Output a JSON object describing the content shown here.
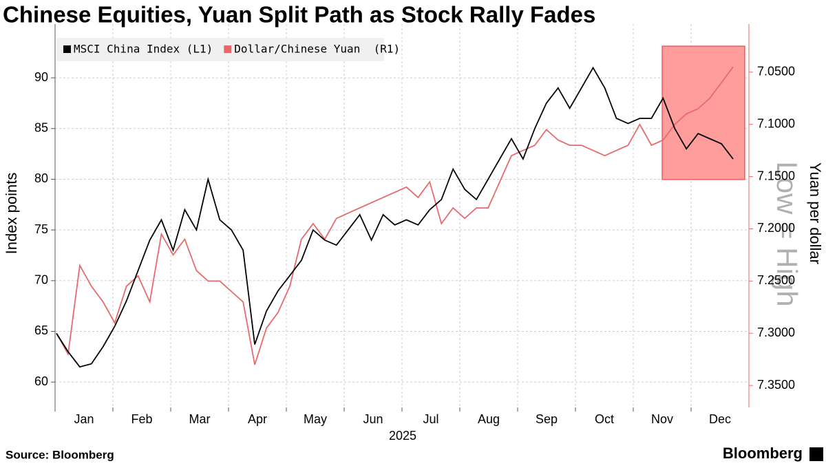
{
  "chart_data": {
    "type": "line",
    "title": "Chinese Equities, Yuan Split Path as Stock Rally Fades",
    "source": "Source: Bloomberg",
    "brand": "Bloomberg",
    "ylabel": "Index points",
    "y2label": "Yuan per dollar",
    "annotation": "Low = High",
    "xlabel": "2025",
    "months": [
      "Jan",
      "Feb",
      "Mar",
      "Apr",
      "May",
      "Jun",
      "Jul",
      "Aug",
      "Sep",
      "Oct",
      "Nov",
      "Dec"
    ],
    "ylim": [
      57.5,
      95.3
    ],
    "yticks": [
      60,
      65,
      70,
      75,
      80,
      85,
      90
    ],
    "y2lim": [
      7.371,
      7.004
    ],
    "y2ticks": [
      {
        "value": 7.05,
        "label": "7.0500"
      },
      {
        "value": 7.1,
        "label": "7.1000"
      },
      {
        "value": 7.15,
        "label": "7.1500"
      },
      {
        "value": 7.2,
        "label": "7.2000"
      },
      {
        "value": 7.25,
        "label": "7.2500"
      },
      {
        "value": 7.3,
        "label": "7.3000"
      },
      {
        "value": 7.35,
        "label": "7.3500"
      }
    ],
    "grid": true,
    "series": [
      {
        "name": "MSCI China Index (L1)",
        "color": "#000000",
        "axis": "y",
        "values": [
          64.8,
          63,
          61.5,
          61.8,
          63.5,
          65.5,
          68,
          71,
          74,
          76,
          73,
          77,
          75,
          80,
          76,
          75,
          73,
          63.7,
          67,
          69,
          70.5,
          72,
          75,
          74,
          73.5,
          75,
          76.5,
          74,
          76.5,
          75.5,
          76,
          75.5,
          77,
          78,
          81,
          79,
          78,
          80,
          82,
          84,
          82,
          85,
          87.5,
          89,
          87,
          89,
          91,
          89,
          86,
          85.5,
          86,
          86,
          88,
          85,
          83,
          84.5,
          84,
          83.5,
          82
        ]
      },
      {
        "name": "Dollar/Chinese Yuan  (R1)",
        "color": "#e8696b",
        "axis": "y2",
        "values": [
          7.3,
          7.32,
          7.235,
          7.255,
          7.27,
          7.29,
          7.255,
          7.245,
          7.27,
          7.205,
          7.225,
          7.21,
          7.24,
          7.25,
          7.25,
          7.26,
          7.27,
          7.33,
          7.295,
          7.28,
          7.255,
          7.21,
          7.195,
          7.21,
          7.19,
          7.185,
          7.18,
          7.175,
          7.17,
          7.165,
          7.16,
          7.17,
          7.155,
          7.195,
          7.18,
          7.19,
          7.18,
          7.18,
          7.155,
          7.13,
          7.125,
          7.12,
          7.105,
          7.115,
          7.12,
          7.12,
          7.125,
          7.13,
          7.125,
          7.12,
          7.1,
          7.12,
          7.115,
          7.1,
          7.09,
          7.085,
          7.075,
          7.06,
          7.045
        ]
      }
    ]
  }
}
